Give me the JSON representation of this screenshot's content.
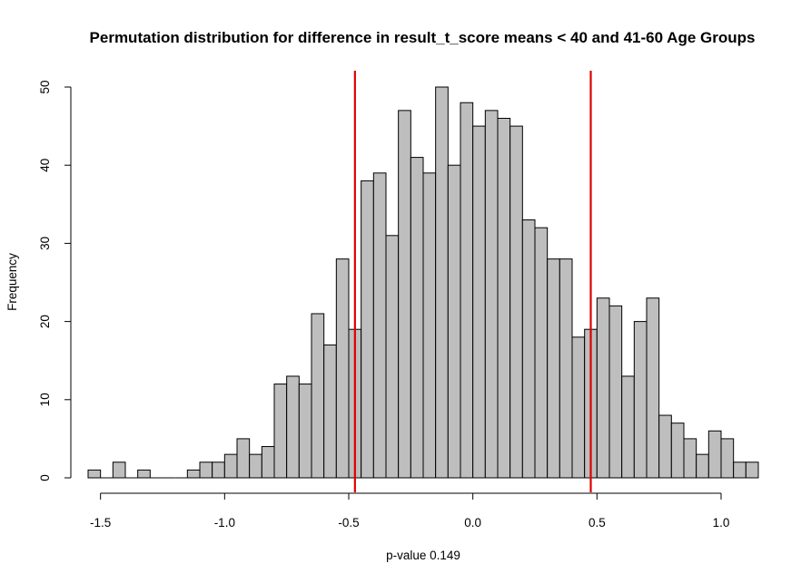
{
  "chart_data": {
    "type": "bar",
    "title": "Permutation distribution for difference in result_t_score means < 40 and 41-60 Age Groups",
    "xlabel": "p-value 0.149",
    "ylabel": "Frequency",
    "bin_width": 0.05,
    "bin_start": -1.55,
    "values": [
      1,
      0,
      2,
      0,
      1,
      0,
      0,
      0,
      1,
      2,
      2,
      3,
      5,
      3,
      4,
      12,
      13,
      12,
      21,
      17,
      28,
      19,
      38,
      39,
      31,
      47,
      41,
      39,
      50,
      40,
      48,
      45,
      47,
      46,
      45,
      33,
      32,
      28,
      28,
      18,
      19,
      23,
      22,
      13,
      20,
      23,
      8,
      7,
      5,
      3,
      6,
      5,
      2,
      2
    ],
    "xlim": [
      -1.55,
      1.15
    ],
    "ylim": [
      0,
      50
    ],
    "x_ticks": [
      "-1.5",
      "-1.0",
      "-0.5",
      "0.0",
      "0.5",
      "1.0"
    ],
    "x_tick_values": [
      -1.5,
      -1.0,
      -0.5,
      0.0,
      0.5,
      1.0
    ],
    "y_ticks": [
      "0",
      "10",
      "20",
      "30",
      "40",
      "50"
    ],
    "y_tick_values": [
      0,
      10,
      20,
      30,
      40,
      50
    ],
    "vlines": [
      -0.475,
      0.475
    ],
    "bar_color": "#bebebe",
    "bar_edge_color": "#000000",
    "vline_color": "#dd0000",
    "grid": false
  }
}
